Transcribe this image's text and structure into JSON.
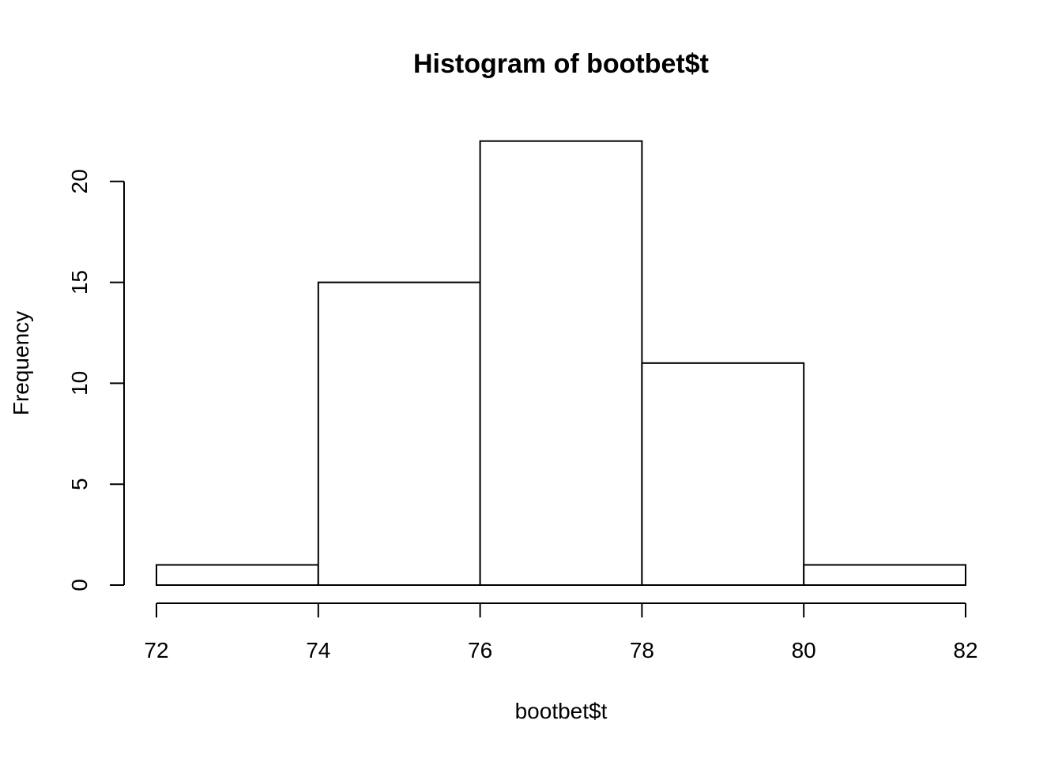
{
  "chart_data": {
    "type": "bar",
    "subtype": "histogram",
    "title": "Histogram of bootbet$t",
    "xlabel": "bootbet$t",
    "ylabel": "Frequency",
    "bins": [
      {
        "start": 72,
        "end": 74,
        "value": 1
      },
      {
        "start": 74,
        "end": 76,
        "value": 15
      },
      {
        "start": 76,
        "end": 78,
        "value": 22
      },
      {
        "start": 78,
        "end": 80,
        "value": 11
      },
      {
        "start": 80,
        "end": 82,
        "value": 1
      }
    ],
    "xlim": [
      72,
      82
    ],
    "ylim": [
      0,
      22
    ],
    "x_ticks": [
      "72",
      "74",
      "76",
      "78",
      "80",
      "82"
    ],
    "y_ticks": [
      "0",
      "5",
      "10",
      "15",
      "20"
    ],
    "grid": false,
    "colors": {
      "bar_fill": "#ffffff",
      "bar_stroke": "#000000",
      "background": "#ffffff"
    }
  }
}
